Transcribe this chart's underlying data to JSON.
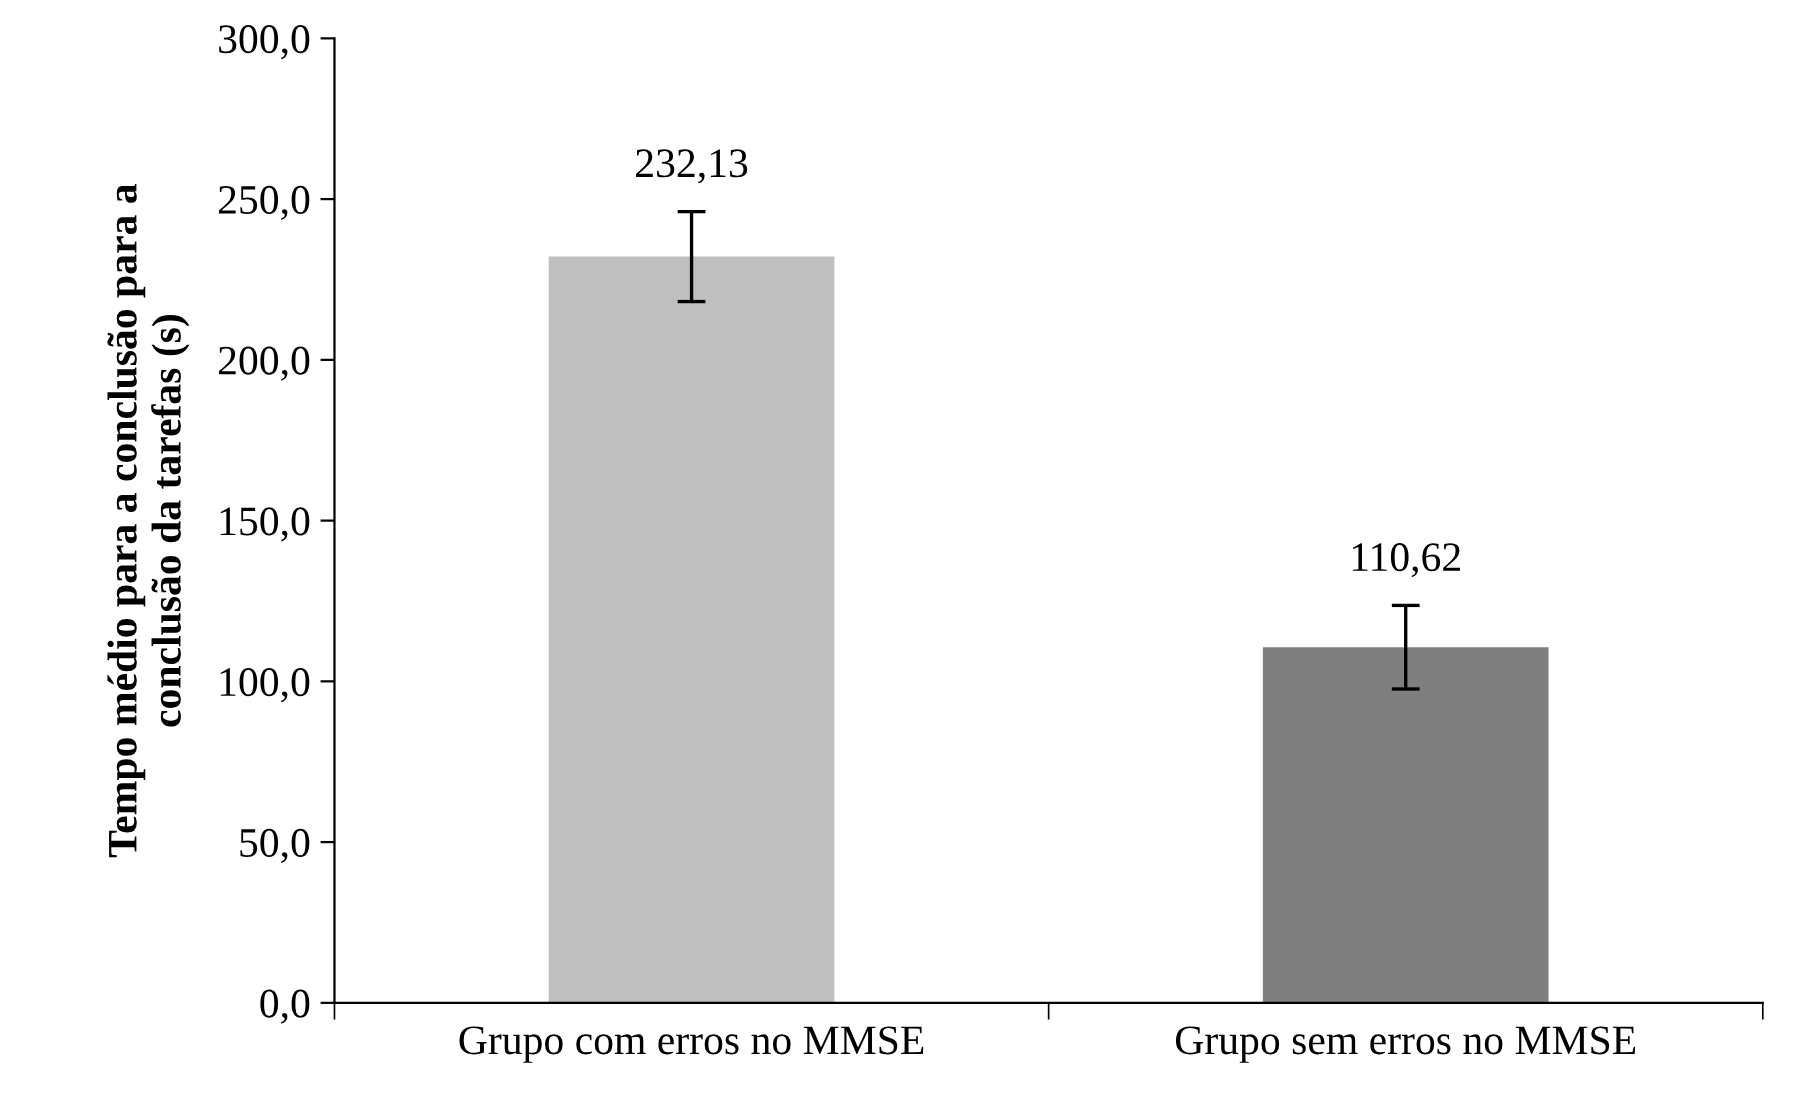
{
  "chart_data": {
    "type": "bar",
    "ylabel": "Tempo médio para a conclusão para a\nconclusão da tarefas (s)",
    "categories": [
      "Grupo com erros no MMSE",
      "Grupo sem erros no MMSE"
    ],
    "values": [
      232.13,
      110.62
    ],
    "colors": [
      "#bfbfbf",
      "#7f7f7f"
    ],
    "errors": [
      14,
      13
    ],
    "value_labels": [
      "232,13",
      "110,62"
    ],
    "ylim": [
      0,
      300
    ],
    "yticks": [
      {
        "value": 0,
        "label": "0,0"
      },
      {
        "value": 50,
        "label": "50,0"
      },
      {
        "value": 100,
        "label": "100,0"
      },
      {
        "value": 150,
        "label": "150,0"
      },
      {
        "value": 200,
        "label": "200,0"
      },
      {
        "value": 250,
        "label": "250,0"
      },
      {
        "value": 300,
        "label": "300,0"
      }
    ],
    "grid": false,
    "legend": false
  }
}
